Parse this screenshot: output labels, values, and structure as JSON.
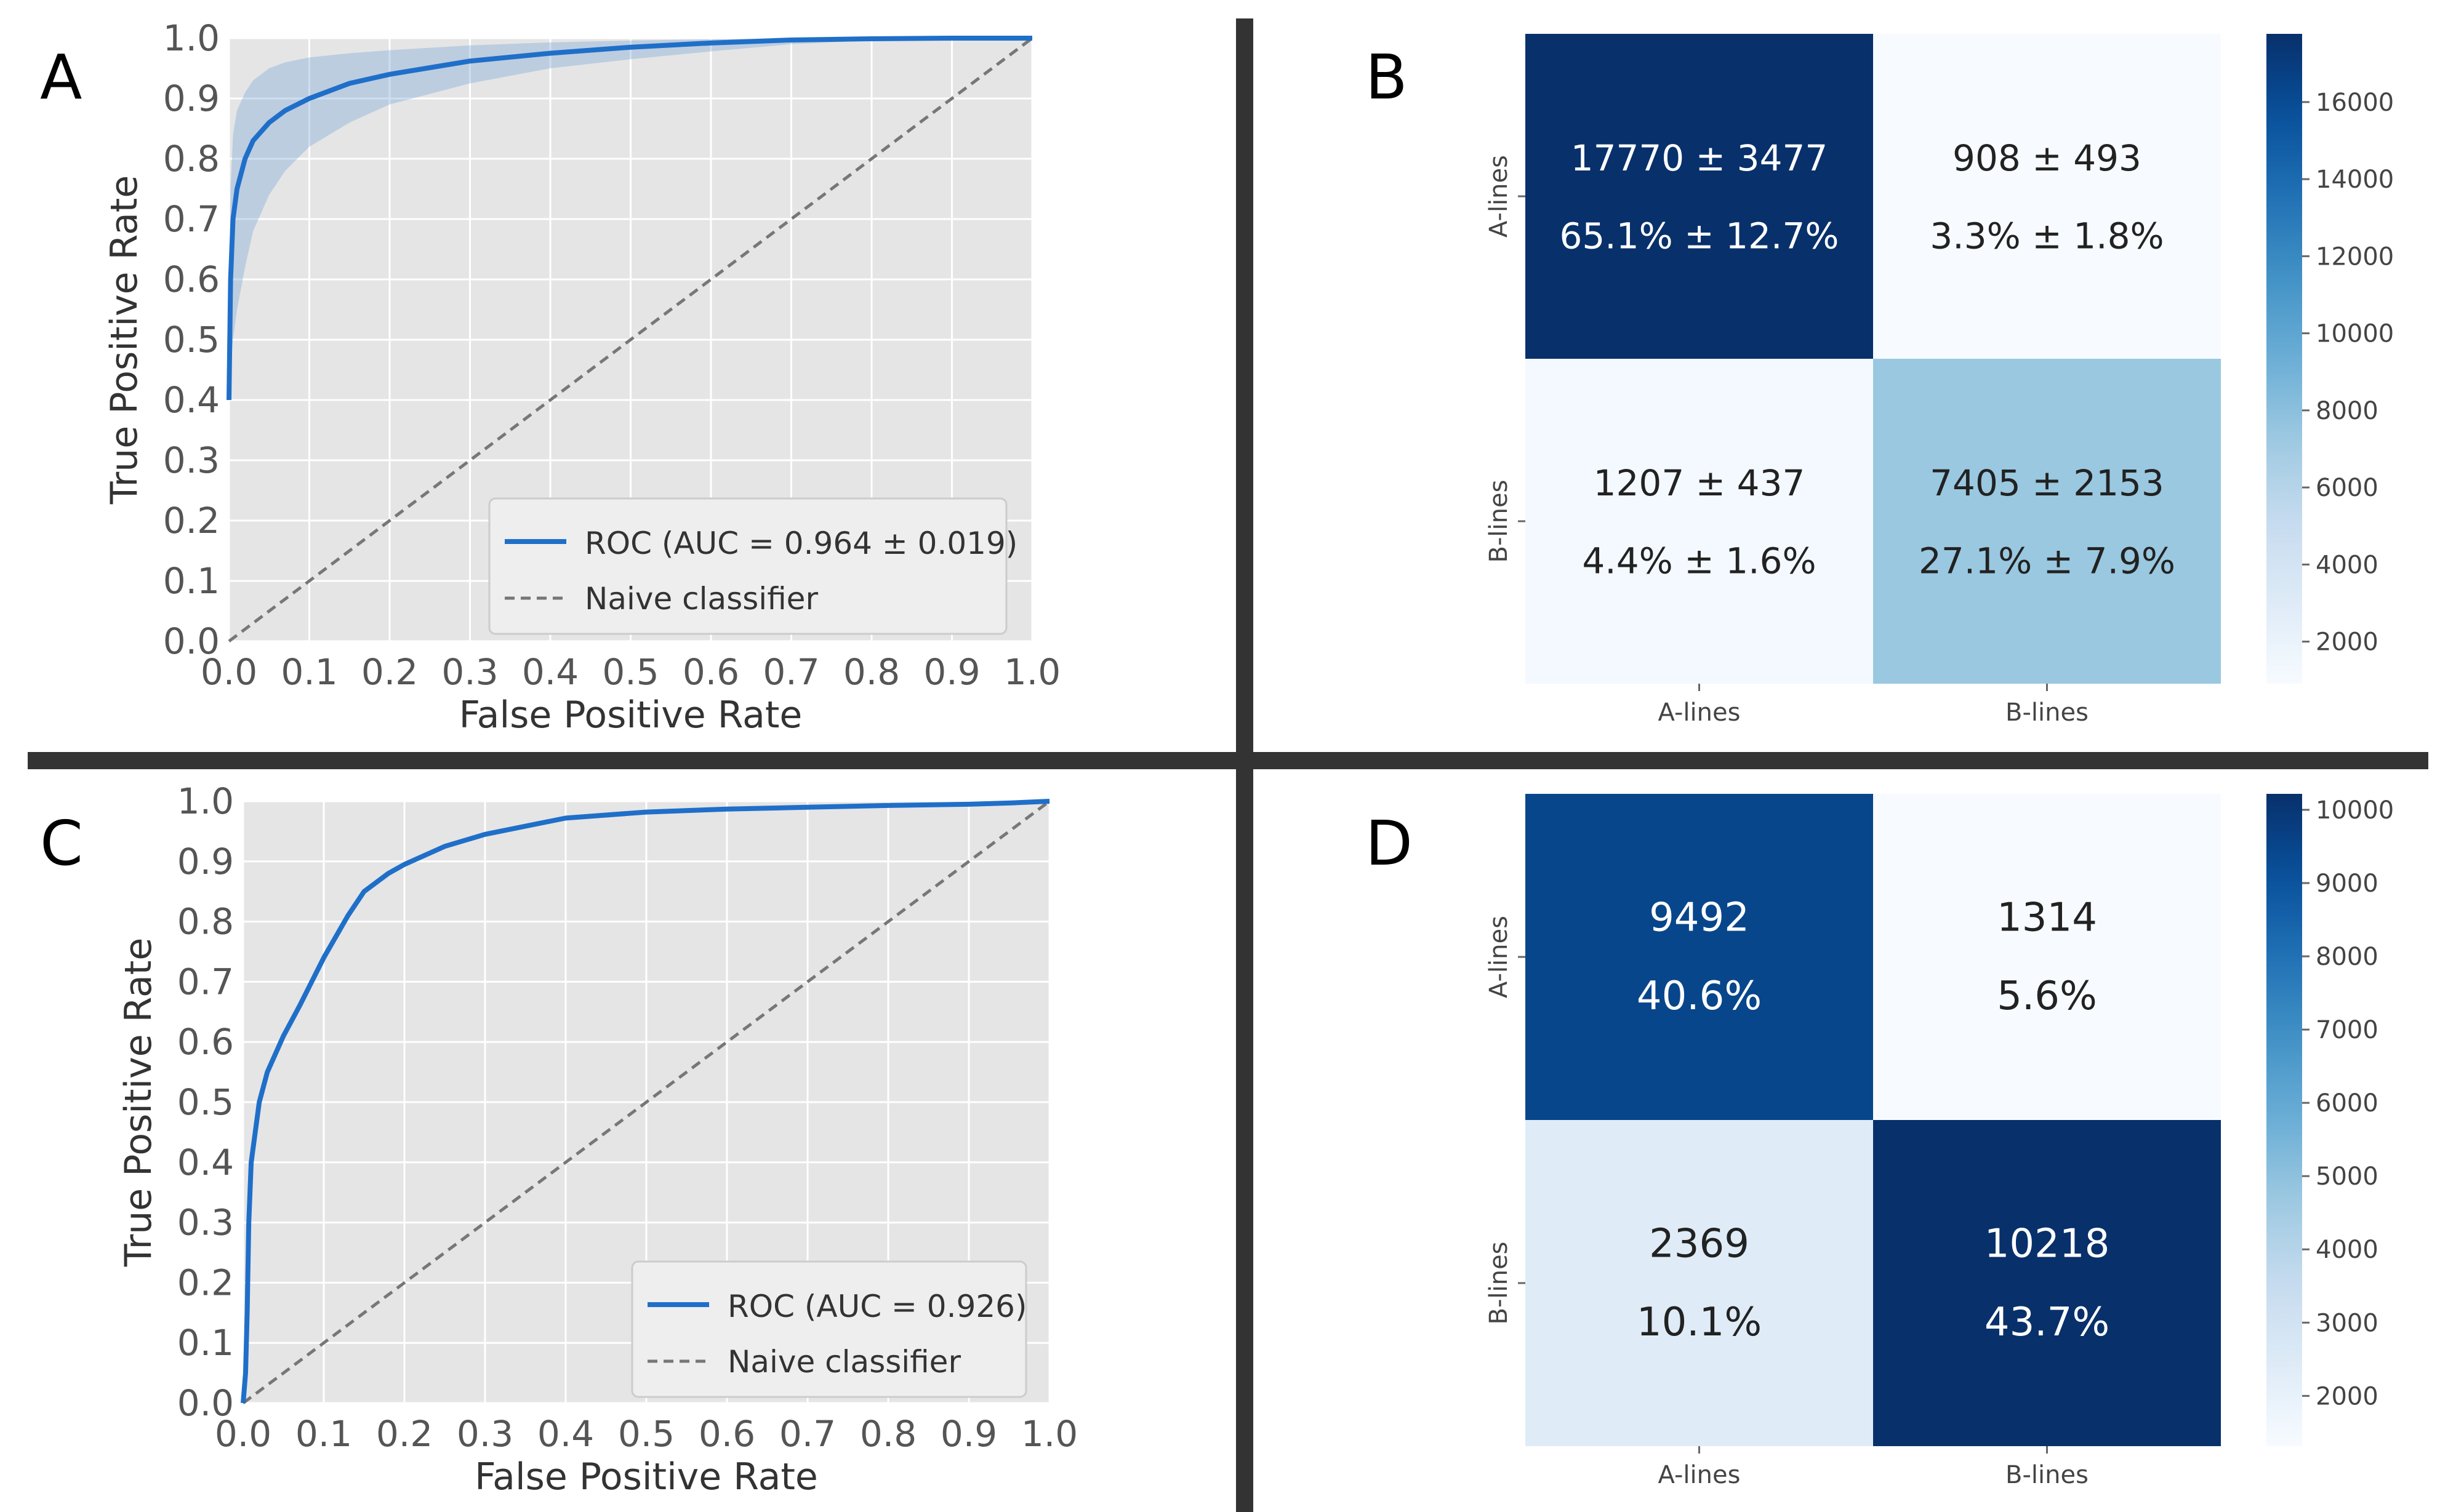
{
  "panels": {
    "A": {
      "letter": "A"
    },
    "B": {
      "letter": "B"
    },
    "C": {
      "letter": "C"
    },
    "D": {
      "letter": "D"
    }
  },
  "colors": {
    "roc_line": "#1f6fc9",
    "roc_band": "#6fa0d8",
    "plot_bg": "#e5e5e5",
    "grid": "#ffffff",
    "naive_line": "#777777",
    "divider": "#333333",
    "cmap": [
      "#f7fbff",
      "#deebf7",
      "#c6dbef",
      "#9ecae1",
      "#6baed6",
      "#4292c6",
      "#2171b5",
      "#08519c",
      "#08306b"
    ]
  },
  "chart_data": [
    {
      "panel": "A",
      "type": "line",
      "xlabel": "False Positive Rate",
      "ylabel": "True Positive Rate",
      "xlim": [
        0,
        1
      ],
      "ylim": [
        0,
        1
      ],
      "ticks": [
        "0.0",
        "0.1",
        "0.2",
        "0.3",
        "0.4",
        "0.5",
        "0.6",
        "0.7",
        "0.8",
        "0.9",
        "1.0"
      ],
      "grid": true,
      "legend_position": "lower-right",
      "series": [
        {
          "name": "ROC (AUC = 0.964 ± 0.019)",
          "x": [
            0,
            0.002,
            0.005,
            0.01,
            0.02,
            0.03,
            0.05,
            0.07,
            0.1,
            0.15,
            0.2,
            0.3,
            0.4,
            0.5,
            0.6,
            0.7,
            0.8,
            0.9,
            1.0
          ],
          "y": [
            0.4,
            0.6,
            0.7,
            0.75,
            0.8,
            0.83,
            0.86,
            0.88,
            0.9,
            0.925,
            0.94,
            0.962,
            0.975,
            0.985,
            0.992,
            0.997,
            0.999,
            1.0,
            1.0
          ],
          "upper": [
            0.42,
            0.75,
            0.84,
            0.88,
            0.91,
            0.93,
            0.95,
            0.96,
            0.968,
            0.975,
            0.98,
            0.988,
            0.993,
            0.996,
            0.998,
            1.0,
            1.0,
            1.0,
            1.0
          ],
          "lower": [
            0.4,
            0.45,
            0.5,
            0.55,
            0.62,
            0.68,
            0.74,
            0.78,
            0.82,
            0.86,
            0.89,
            0.925,
            0.95,
            0.965,
            0.978,
            0.99,
            0.996,
            0.999,
            1.0
          ]
        },
        {
          "name": "Naive classifier",
          "x": [
            0,
            1
          ],
          "y": [
            0,
            1
          ]
        }
      ]
    },
    {
      "panel": "B",
      "type": "heatmap",
      "x_categories": [
        "A-lines",
        "B-lines"
      ],
      "y_categories": [
        "A-lines",
        "B-lines"
      ],
      "values": [
        [
          17770,
          908
        ],
        [
          1207,
          7405
        ]
      ],
      "cell_labels": [
        [
          "17770 ± 3477",
          "908 ± 493"
        ],
        [
          "1207 ± 437",
          "7405 ± 2153"
        ]
      ],
      "cell_percents": [
        [
          "65.1% ± 12.7%",
          "3.3% ± 1.8%"
        ],
        [
          "4.4% ± 1.6%",
          "27.1% ± 7.9%"
        ]
      ],
      "colorbar": {
        "range": [
          908,
          17770
        ],
        "ticks": [
          "2000",
          "4000",
          "6000",
          "8000",
          "10000",
          "12000",
          "14000",
          "16000"
        ]
      }
    },
    {
      "panel": "C",
      "type": "line",
      "xlabel": "False Positive Rate",
      "ylabel": "True Positive Rate",
      "xlim": [
        0,
        1
      ],
      "ylim": [
        0,
        1
      ],
      "ticks": [
        "0.0",
        "0.1",
        "0.2",
        "0.3",
        "0.4",
        "0.5",
        "0.6",
        "0.7",
        "0.8",
        "0.9",
        "1.0"
      ],
      "grid": true,
      "legend_position": "lower-right",
      "series": [
        {
          "name": "ROC (AUC = 0.926)",
          "x": [
            0,
            0.003,
            0.005,
            0.007,
            0.01,
            0.015,
            0.02,
            0.03,
            0.05,
            0.07,
            0.1,
            0.13,
            0.15,
            0.18,
            0.2,
            0.25,
            0.3,
            0.4,
            0.5,
            0.6,
            0.7,
            0.8,
            0.9,
            0.95,
            1.0
          ],
          "y": [
            0,
            0.05,
            0.15,
            0.3,
            0.4,
            0.45,
            0.5,
            0.55,
            0.61,
            0.66,
            0.74,
            0.81,
            0.85,
            0.88,
            0.895,
            0.925,
            0.945,
            0.972,
            0.982,
            0.987,
            0.99,
            0.993,
            0.995,
            0.997,
            1.0
          ]
        },
        {
          "name": "Naive classifier",
          "x": [
            0,
            1
          ],
          "y": [
            0,
            1
          ]
        }
      ]
    },
    {
      "panel": "D",
      "type": "heatmap",
      "x_categories": [
        "A-lines",
        "B-lines"
      ],
      "y_categories": [
        "A-lines",
        "B-lines"
      ],
      "values": [
        [
          9492,
          1314
        ],
        [
          2369,
          10218
        ]
      ],
      "cell_labels": [
        [
          "9492",
          "1314"
        ],
        [
          "2369",
          "10218"
        ]
      ],
      "cell_percents": [
        [
          "40.6%",
          "5.6%"
        ],
        [
          "10.1%",
          "43.7%"
        ]
      ],
      "colorbar": {
        "range": [
          1314,
          10218
        ],
        "ticks": [
          "2000",
          "3000",
          "4000",
          "5000",
          "6000",
          "7000",
          "8000",
          "9000",
          "10000"
        ]
      }
    }
  ]
}
